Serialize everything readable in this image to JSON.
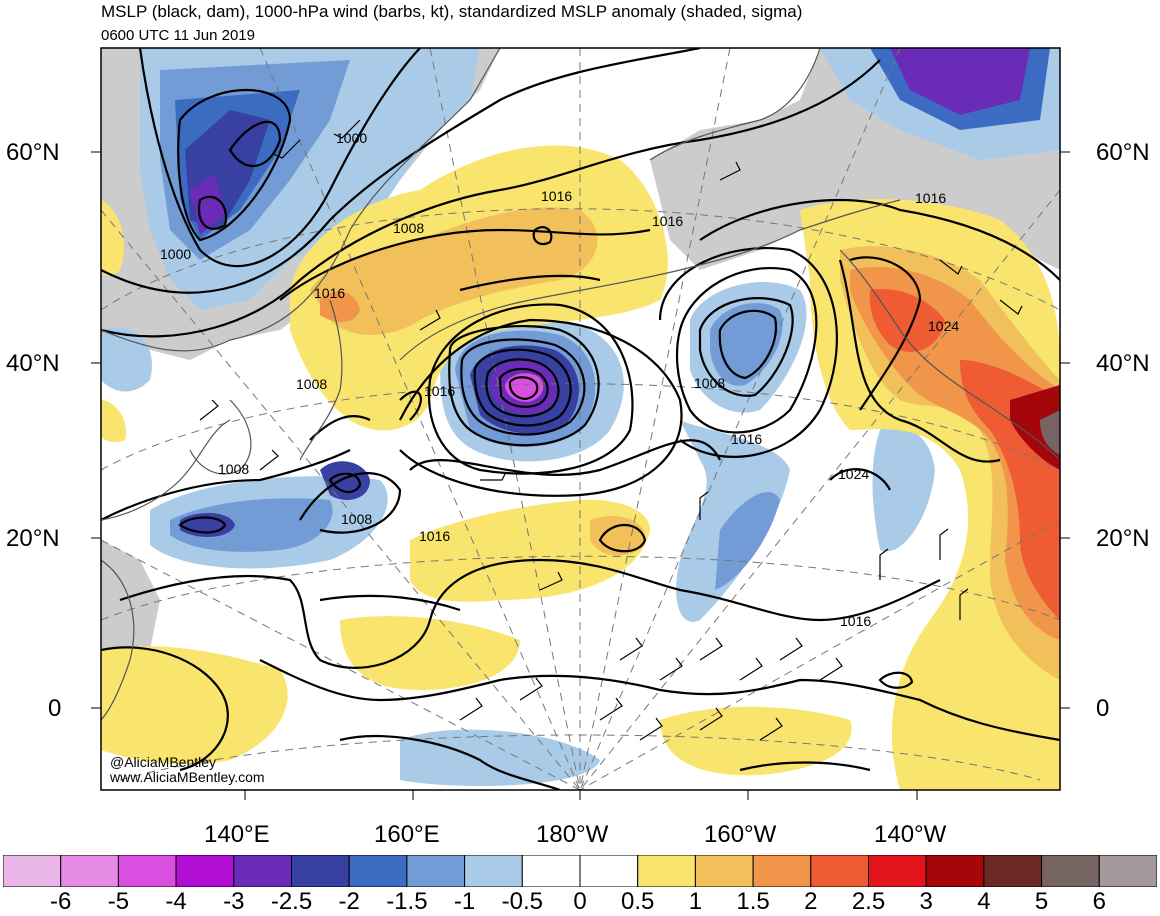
{
  "header": {
    "title": "MSLP (black, dam), 1000-hPa wind (barbs, kt), standardized MSLP anomaly (shaded, sigma)",
    "valid_time": "0600 UTC 11 Jun 2019"
  },
  "map": {
    "projection": "polar stereographic",
    "lat_labels_left": [
      "60°N",
      "40°N",
      "20°N",
      "0"
    ],
    "lat_labels_right": [
      "60°N",
      "40°N",
      "20°N",
      "0"
    ],
    "lon_labels_bottom": [
      "140°E",
      "160°E",
      "180°W",
      "160°W",
      "140°W"
    ],
    "isobar_labels": [
      "1000",
      "1000",
      "1008",
      "1016",
      "1008",
      "1016",
      "1016",
      "1016",
      "1008",
      "1008",
      "1016",
      "1008",
      "1016",
      "1016",
      "1024",
      "1024",
      "1016"
    ],
    "watermark": [
      "@AliciaMBentley",
      "www.AliciaMBentley.com"
    ],
    "land_color": "#cccccc",
    "ocean_color": "#ffffff"
  },
  "colorbar": {
    "labels": [
      "-6",
      "-5",
      "-4",
      "-3",
      "-2.5",
      "-2",
      "-1.5",
      "-1",
      "-0.5",
      "0",
      "0.5",
      "1",
      "1.5",
      "2",
      "2.5",
      "3",
      "4",
      "5",
      "6"
    ],
    "colors": [
      "#ebb7e8",
      "#e58ae5",
      "#db4fe0",
      "#b20fd4",
      "#6a2cb8",
      "#3840a2",
      "#3b6cc1",
      "#739cd6",
      "#a9cbe8",
      "#ffffff",
      "#ffffff",
      "#f9e56d",
      "#f2c05b",
      "#f09549",
      "#ef5b33",
      "#e4141c",
      "#a4060c",
      "#6e2824",
      "#766462",
      "#a5989a"
    ]
  }
}
